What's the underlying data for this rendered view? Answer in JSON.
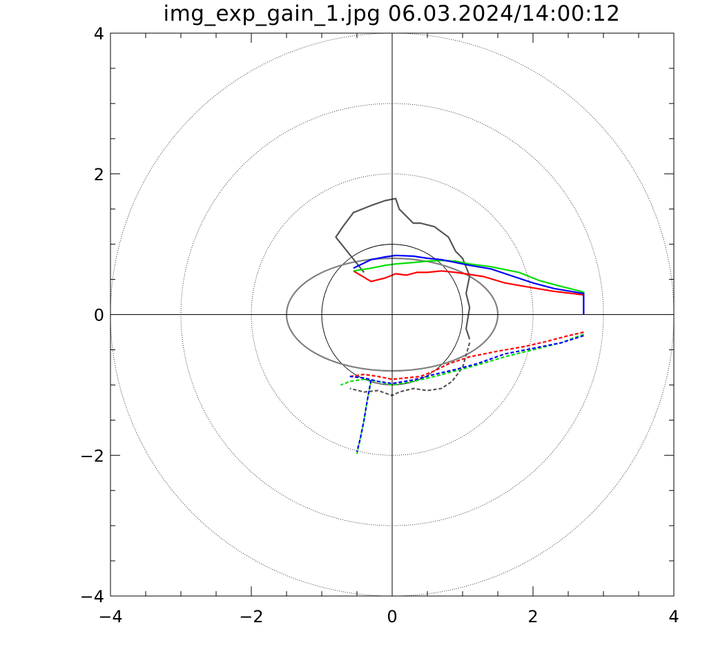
{
  "chart_data": {
    "type": "line",
    "title": "img_exp_gain_1.jpg 06.03.2024/14:00:12",
    "xlim": [
      -4,
      4
    ],
    "ylim": [
      -4,
      4
    ],
    "xticks": [
      -4,
      -2,
      0,
      2,
      4
    ],
    "yticks": [
      -4,
      -2,
      0,
      2,
      4
    ],
    "xtick_labels": [
      "−4",
      "−2",
      "0",
      "2",
      "4"
    ],
    "ytick_labels": [
      "−4",
      "−2",
      "0",
      "2",
      "4"
    ],
    "reference_circles": [
      1,
      2,
      3,
      4
    ],
    "reference_ellipse": {
      "rx": 1.5,
      "ry": 0.8
    },
    "colors": {
      "red": "#ff0000",
      "green": "#00dd00",
      "blue": "#0000ff",
      "gray": "#555555",
      "ellipse": "#808080"
    },
    "series": [
      {
        "color": "#555555",
        "style": "solid",
        "x": [
          -0.4,
          -0.8,
          -0.7,
          -0.55,
          -0.3,
          -0.1,
          0.05,
          0.1,
          0.3,
          0.4,
          0.6,
          0.8,
          0.9,
          1.0,
          1.1,
          1.05,
          1.1,
          1.05,
          1.1
        ],
        "y": [
          0.6,
          1.1,
          1.25,
          1.45,
          1.55,
          1.62,
          1.65,
          1.5,
          1.3,
          1.3,
          1.25,
          1.1,
          0.9,
          0.8,
          0.55,
          0.3,
          0.1,
          -0.2,
          -0.35
        ]
      },
      {
        "color": "#555555",
        "style": "dashed",
        "x": [
          1.1,
          1.0,
          0.85,
          0.7,
          0.5,
          0.3,
          0.1,
          0.0,
          -0.2,
          -0.4,
          -0.6
        ],
        "y": [
          -0.4,
          -0.75,
          -0.95,
          -1.05,
          -1.08,
          -1.05,
          -1.1,
          -1.15,
          -1.08,
          -1.1,
          -1.05
        ]
      },
      {
        "color": "#ff0000",
        "style": "solid",
        "x": [
          -0.55,
          -0.3,
          -0.1,
          0.05,
          0.2,
          0.35,
          0.5,
          0.7,
          0.9,
          1.1,
          1.3,
          1.6,
          2.0,
          2.3,
          2.55,
          2.72,
          2.72
        ],
        "y": [
          0.62,
          0.47,
          0.52,
          0.58,
          0.56,
          0.6,
          0.6,
          0.62,
          0.6,
          0.57,
          0.54,
          0.45,
          0.38,
          0.33,
          0.3,
          0.28,
          0.0
        ]
      },
      {
        "color": "#ff0000",
        "style": "dashed",
        "x": [
          2.72,
          2.5,
          2.2,
          1.9,
          1.5,
          1.1,
          0.8,
          0.6,
          0.4,
          0.2,
          0.0,
          -0.2,
          -0.4,
          -0.6
        ],
        "y": [
          -0.25,
          -0.3,
          -0.38,
          -0.45,
          -0.52,
          -0.6,
          -0.7,
          -0.8,
          -0.88,
          -0.9,
          -0.92,
          -0.88,
          -0.85,
          -0.88
        ]
      },
      {
        "color": "#00dd00",
        "style": "solid",
        "x": [
          -0.55,
          -0.3,
          -0.1,
          0.05,
          0.3,
          0.5,
          0.7,
          0.9,
          1.1,
          1.4,
          1.8,
          2.1,
          2.4,
          2.6,
          2.72,
          2.72
        ],
        "y": [
          0.62,
          0.66,
          0.7,
          0.72,
          0.74,
          0.76,
          0.77,
          0.76,
          0.72,
          0.68,
          0.6,
          0.48,
          0.4,
          0.35,
          0.32,
          0.0
        ]
      },
      {
        "color": "#00dd00",
        "style": "dashed",
        "x": [
          2.72,
          2.4,
          2.0,
          1.6,
          1.2,
          0.9,
          0.6,
          0.3,
          0.0,
          -0.2,
          -0.4,
          -0.6,
          -0.73
        ],
        "y": [
          -0.28,
          -0.4,
          -0.5,
          -0.6,
          -0.72,
          -0.8,
          -0.88,
          -0.95,
          -1.0,
          -0.95,
          -0.92,
          -0.95,
          -1.0
        ]
      },
      {
        "color": "#00dd00",
        "style": "dashed",
        "x": [
          -0.3,
          -0.35,
          -0.4,
          -0.45,
          -0.5
        ],
        "y": [
          -0.95,
          -1.2,
          -1.5,
          -1.75,
          -1.98
        ]
      },
      {
        "color": "#0000ff",
        "style": "solid",
        "x": [
          -0.55,
          -0.3,
          -0.1,
          0.05,
          0.3,
          0.5,
          0.7,
          0.9,
          1.1,
          1.4,
          1.7,
          2.0,
          2.3,
          2.6,
          2.72,
          2.72
        ],
        "y": [
          0.66,
          0.78,
          0.82,
          0.84,
          0.83,
          0.8,
          0.78,
          0.74,
          0.7,
          0.65,
          0.55,
          0.45,
          0.37,
          0.32,
          0.3,
          0.0
        ]
      },
      {
        "color": "#0000ff",
        "style": "dashed",
        "x": [
          2.72,
          2.4,
          2.0,
          1.6,
          1.2,
          0.9,
          0.6,
          0.3,
          0.0,
          -0.2,
          -0.4,
          -0.6
        ],
        "y": [
          -0.3,
          -0.4,
          -0.48,
          -0.56,
          -0.7,
          -0.78,
          -0.85,
          -0.93,
          -0.98,
          -0.95,
          -0.9,
          -0.88
        ]
      },
      {
        "color": "#0000ff",
        "style": "dashed",
        "x": [
          -0.3,
          -0.35,
          -0.4,
          -0.45,
          -0.5
        ],
        "y": [
          -0.93,
          -1.2,
          -1.5,
          -1.75,
          -1.95
        ]
      }
    ]
  }
}
